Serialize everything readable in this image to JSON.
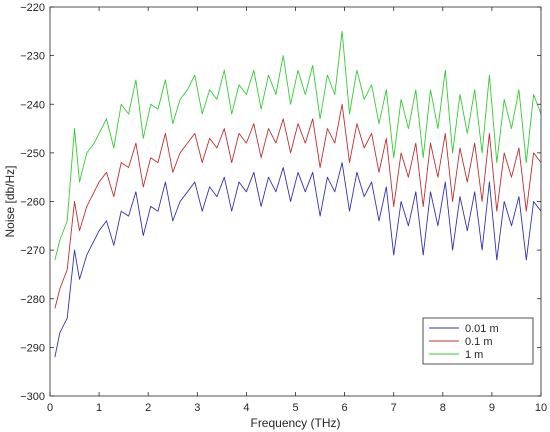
{
  "chart_data": {
    "type": "line",
    "title": "",
    "xlabel": "Frequency (THz)",
    "ylabel": "Noise [db/Hz]",
    "xlim": [
      0,
      10
    ],
    "ylim": [
      -300,
      -220
    ],
    "xticks": [
      0,
      1,
      2,
      3,
      4,
      5,
      6,
      7,
      8,
      9,
      10
    ],
    "yticks": [
      -300,
      -290,
      -280,
      -270,
      -260,
      -250,
      -240,
      -230,
      -220
    ],
    "xtick_labels": [
      "0",
      "1",
      "2",
      "3",
      "4",
      "5",
      "6",
      "7",
      "8",
      "9",
      "10"
    ],
    "ytick_labels": [
      "−300",
      "−290",
      "−280",
      "−270",
      "−260",
      "−250",
      "−240",
      "−230",
      "−220"
    ],
    "grid": false,
    "legend_position": "lower-right",
    "series": [
      {
        "name": "0.01 m",
        "color": "#3333b0",
        "x": [
          0.1,
          0.2,
          0.35,
          0.5,
          0.6,
          0.75,
          0.9,
          1.0,
          1.15,
          1.3,
          1.45,
          1.6,
          1.75,
          1.9,
          2.05,
          2.2,
          2.35,
          2.5,
          2.65,
          2.8,
          2.95,
          3.1,
          3.25,
          3.4,
          3.55,
          3.7,
          3.85,
          4.0,
          4.15,
          4.3,
          4.45,
          4.6,
          4.75,
          4.9,
          5.05,
          5.2,
          5.35,
          5.5,
          5.65,
          5.8,
          5.95,
          6.1,
          6.25,
          6.4,
          6.55,
          6.7,
          6.85,
          7.0,
          7.15,
          7.3,
          7.45,
          7.6,
          7.75,
          7.9,
          8.05,
          8.2,
          8.35,
          8.5,
          8.65,
          8.8,
          8.95,
          9.1,
          9.25,
          9.4,
          9.55,
          9.7,
          9.85,
          10.0
        ],
        "values": [
          -292,
          -287,
          -284,
          -270,
          -276,
          -271,
          -268,
          -266,
          -264,
          -269,
          -262,
          -263,
          -258,
          -267,
          -261,
          -262,
          -256,
          -264,
          -260,
          -258,
          -256,
          -262,
          -257,
          -259,
          -255,
          -262,
          -256,
          -258,
          -254,
          -261,
          -255,
          -258,
          -253,
          -260,
          -254,
          -258,
          -254,
          -263,
          -255,
          -258,
          -252,
          -262,
          -254,
          -259,
          -256,
          -264,
          -257,
          -271,
          -260,
          -265,
          -258,
          -271,
          -258,
          -265,
          -256,
          -270,
          -259,
          -266,
          -258,
          -270,
          -256,
          -272,
          -260,
          -265,
          -259,
          -272,
          -260,
          -262
        ]
      },
      {
        "name": "0.1 m",
        "color": "#c03030",
        "x": [
          0.1,
          0.2,
          0.35,
          0.5,
          0.6,
          0.75,
          0.9,
          1.0,
          1.15,
          1.3,
          1.45,
          1.6,
          1.75,
          1.9,
          2.05,
          2.2,
          2.35,
          2.5,
          2.65,
          2.8,
          2.95,
          3.1,
          3.25,
          3.4,
          3.55,
          3.7,
          3.85,
          4.0,
          4.15,
          4.3,
          4.45,
          4.6,
          4.75,
          4.9,
          5.05,
          5.2,
          5.35,
          5.5,
          5.65,
          5.8,
          5.95,
          6.1,
          6.25,
          6.4,
          6.55,
          6.7,
          6.85,
          7.0,
          7.15,
          7.3,
          7.45,
          7.6,
          7.75,
          7.9,
          8.05,
          8.2,
          8.35,
          8.5,
          8.65,
          8.8,
          8.95,
          9.1,
          9.25,
          9.4,
          9.55,
          9.7,
          9.85,
          10.0
        ],
        "values": [
          -282,
          -278,
          -274,
          -260,
          -266,
          -261,
          -258,
          -256,
          -254,
          -259,
          -252,
          -253,
          -248,
          -257,
          -251,
          -252,
          -246,
          -254,
          -250,
          -248,
          -246,
          -252,
          -247,
          -249,
          -245,
          -252,
          -246,
          -248,
          -244,
          -251,
          -245,
          -248,
          -243,
          -250,
          -244,
          -248,
          -243,
          -253,
          -245,
          -248,
          -240,
          -252,
          -244,
          -249,
          -246,
          -254,
          -247,
          -261,
          -250,
          -255,
          -248,
          -261,
          -248,
          -255,
          -246,
          -260,
          -249,
          -256,
          -248,
          -260,
          -246,
          -262,
          -250,
          -255,
          -249,
          -262,
          -250,
          -252
        ]
      },
      {
        "name": "1 m",
        "color": "#33cc33",
        "x": [
          0.1,
          0.2,
          0.35,
          0.5,
          0.6,
          0.75,
          0.9,
          1.0,
          1.15,
          1.3,
          1.45,
          1.6,
          1.75,
          1.9,
          2.05,
          2.2,
          2.35,
          2.5,
          2.65,
          2.8,
          2.95,
          3.1,
          3.25,
          3.4,
          3.55,
          3.7,
          3.85,
          4.0,
          4.15,
          4.3,
          4.45,
          4.6,
          4.75,
          4.9,
          5.05,
          5.2,
          5.35,
          5.5,
          5.65,
          5.8,
          5.95,
          6.1,
          6.25,
          6.4,
          6.55,
          6.7,
          6.85,
          7.0,
          7.15,
          7.3,
          7.45,
          7.6,
          7.75,
          7.9,
          8.05,
          8.2,
          8.35,
          8.5,
          8.65,
          8.8,
          8.95,
          9.1,
          9.25,
          9.4,
          9.55,
          9.7,
          9.85,
          10.0
        ],
        "values": [
          -272,
          -268,
          -264,
          -245,
          -256,
          -250,
          -248,
          -246,
          -243,
          -249,
          -240,
          -242,
          -235,
          -247,
          -240,
          -241,
          -235,
          -244,
          -239,
          -237,
          -234,
          -242,
          -237,
          -239,
          -233,
          -242,
          -236,
          -238,
          -233,
          -241,
          -234,
          -238,
          -230,
          -240,
          -233,
          -238,
          -232,
          -243,
          -234,
          -238,
          -225,
          -242,
          -233,
          -239,
          -236,
          -244,
          -237,
          -251,
          -239,
          -245,
          -237,
          -251,
          -237,
          -245,
          -233,
          -250,
          -238,
          -246,
          -237,
          -250,
          -234,
          -252,
          -239,
          -245,
          -237,
          -252,
          -238,
          -242
        ]
      }
    ]
  }
}
